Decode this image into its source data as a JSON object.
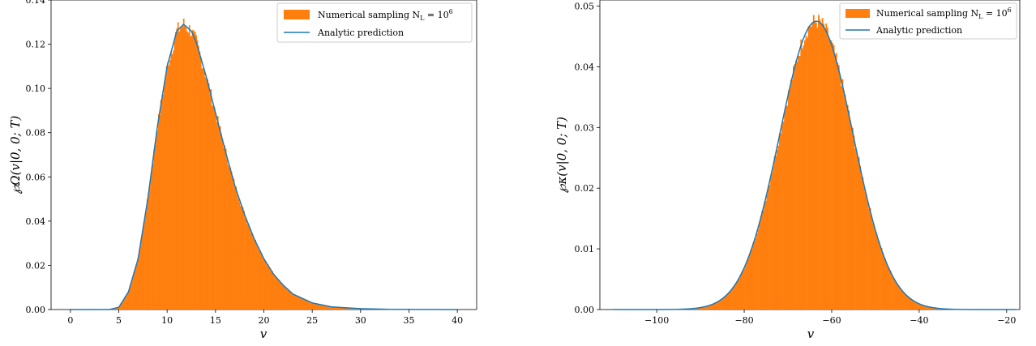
{
  "figure": {
    "left_panel": {
      "xlabel": "v",
      "ylabel": "℘Ω(v|0, 0; T)",
      "legend": {
        "hist_label": "Numerical sampling N",
        "hist_label_sub": "L",
        "hist_label_eq": " = 10",
        "hist_label_exp": "6",
        "line_label": "Analytic prediction"
      }
    },
    "right_panel": {
      "xlabel": "v",
      "ylabel": "℘κ(v|0, 0; T)",
      "legend": {
        "hist_label": "Numerical sampling N",
        "hist_label_sub": "L",
        "hist_label_eq": " = 10",
        "hist_label_exp": "6",
        "line_label": "Analytic prediction"
      }
    }
  },
  "chart_data": [
    {
      "type": "histogram+line",
      "xlabel": "v",
      "ylabel": "℘Ω(v|0, 0; T)",
      "xlim": [
        -2,
        42
      ],
      "ylim": [
        0,
        0.14
      ],
      "xticks": [
        0,
        5,
        10,
        15,
        20,
        25,
        30,
        35,
        40
      ],
      "yticks": [
        0.0,
        0.02,
        0.04,
        0.06,
        0.08,
        0.1,
        0.12,
        0.14
      ],
      "ytick_labels": [
        "0.00",
        "0.02",
        "0.04",
        "0.06",
        "0.08",
        "0.10",
        "0.12",
        "0.14"
      ],
      "grid": false,
      "legend_position": "top-right",
      "colors": {
        "histogram": "#ff7f0e",
        "line": "#1f77b4"
      },
      "series": [
        {
          "name": "Numerical sampling N_L = 10^6",
          "kind": "histogram"
        },
        {
          "name": "Analytic prediction",
          "kind": "line"
        }
      ],
      "x": [
        0,
        4,
        5,
        6,
        7,
        8,
        9,
        10,
        11,
        11.7,
        12.5,
        13,
        14,
        15,
        16,
        17,
        18,
        19,
        20,
        21,
        22,
        23,
        25,
        27,
        30,
        33,
        40
      ],
      "y": [
        0,
        0,
        0.001,
        0.008,
        0.023,
        0.05,
        0.083,
        0.11,
        0.126,
        0.129,
        0.126,
        0.121,
        0.106,
        0.089,
        0.072,
        0.056,
        0.043,
        0.032,
        0.023,
        0.016,
        0.011,
        0.007,
        0.003,
        0.0012,
        0.0004,
        0.0001,
        0
      ]
    },
    {
      "type": "histogram+line",
      "xlabel": "v",
      "ylabel": "℘κ(v|0, 0; T)",
      "xlim": [
        -113,
        -17
      ],
      "ylim": [
        0,
        0.051
      ],
      "xticks": [
        -100,
        -80,
        -60,
        -40,
        -20
      ],
      "xtick_labels": [
        "−100",
        "−80",
        "−60",
        "−40",
        "−20"
      ],
      "yticks": [
        0.0,
        0.01,
        0.02,
        0.03,
        0.04,
        0.05
      ],
      "ytick_labels": [
        "0.00",
        "0.01",
        "0.02",
        "0.03",
        "0.04",
        "0.05"
      ],
      "grid": false,
      "legend_position": "top-right",
      "colors": {
        "histogram": "#ff7f0e",
        "line": "#1f77b4"
      },
      "series": [
        {
          "name": "Numerical sampling N_L = 10^6",
          "kind": "histogram"
        },
        {
          "name": "Analytic prediction",
          "kind": "line"
        }
      ],
      "mean": -63.5,
      "sd": 8.4,
      "peak": 0.0475,
      "x_range": [
        -110,
        -18
      ]
    }
  ]
}
